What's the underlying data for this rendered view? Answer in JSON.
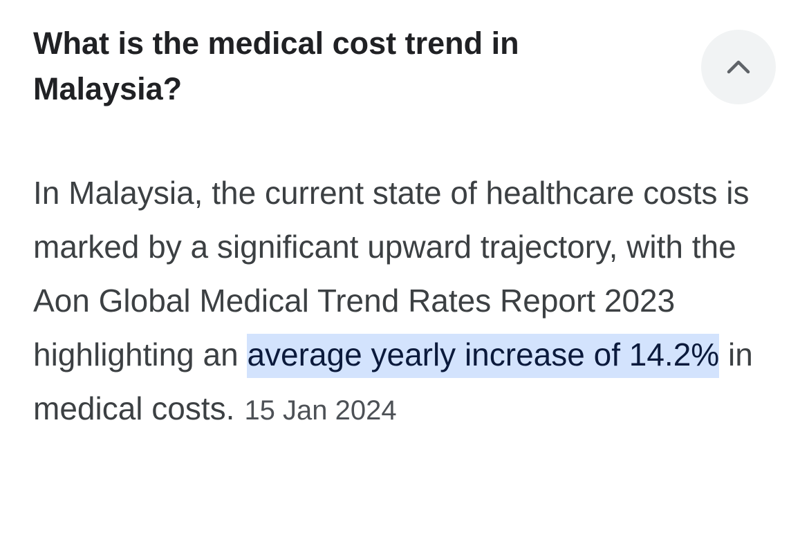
{
  "question": "What is the medical cost trend in Malaysia?",
  "answer": {
    "before": "In Malaysia, the current state of healthcare costs is marked by a significant upward trajectory, with the Aon Global Medical Trend Rates Report 2023 highlighting an",
    "highlight": "average yearly increase of 14.2%",
    "after": "in medical costs.",
    "date": "15 Jan 2024"
  }
}
